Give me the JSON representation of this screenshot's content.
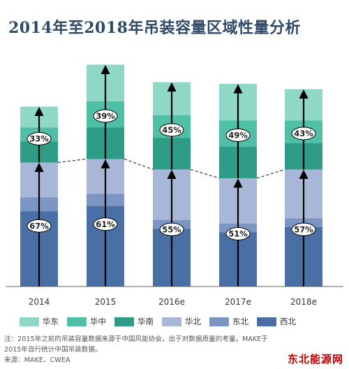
{
  "title": "2014年至2018年吊装容量区域性量分析",
  "chart_data": {
    "type": "bar",
    "stacked": true,
    "categories": [
      "2014",
      "2015",
      "2016e",
      "2017e",
      "2018e"
    ],
    "series": [
      {
        "name": "西北",
        "color": "#4a6fa5",
        "values": [
          21.5,
          23.0,
          16.5,
          15.5,
          17.0
        ]
      },
      {
        "name": "东北",
        "color": "#7b96c2",
        "values": [
          4.0,
          3.5,
          2.5,
          2.5,
          2.5
        ]
      },
      {
        "name": "华北",
        "color": "#a8b7d8",
        "values": [
          10.0,
          10.0,
          14.5,
          13.0,
          14.0
        ]
      },
      {
        "name": "华南",
        "color": "#2e9c86",
        "values": [
          6.0,
          9.0,
          9.0,
          9.0,
          7.5
        ]
      },
      {
        "name": "华中",
        "color": "#4fc0a6",
        "values": [
          4.0,
          7.5,
          6.5,
          7.5,
          6.5
        ]
      },
      {
        "name": "华东",
        "color": "#8fd8c6",
        "values": [
          6.0,
          10.5,
          9.5,
          10.5,
          9.0
        ]
      }
    ],
    "upper_pct": [
      "33%",
      "39%",
      "45%",
      "49%",
      "43%"
    ],
    "lower_pct": [
      "67%",
      "61%",
      "55%",
      "51%",
      "57%"
    ],
    "ylim": [
      0,
      70
    ],
    "grid": false,
    "legend": "bottom"
  },
  "legend_order": [
    "华东",
    "华中",
    "华南",
    "华北",
    "东北",
    "西北"
  ],
  "note": "注：2015年之前的吊装容量数据来源于中国风能协会，出于对数据质量的考量，MAKE于\n2015年自行统计中国吊装数据。\n来源：MAKE、CWEA",
  "watermark": "东北能源网"
}
